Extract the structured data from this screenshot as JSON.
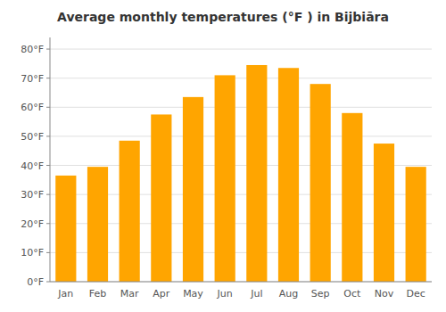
{
  "chart_data": {
    "type": "bar",
    "title": "Average monthly temperatures (°F ) in Bijbiāra",
    "categories": [
      "Jan",
      "Feb",
      "Mar",
      "Apr",
      "May",
      "Jun",
      "Jul",
      "Aug",
      "Sep",
      "Oct",
      "Nov",
      "Dec"
    ],
    "values": [
      36.5,
      39.5,
      48.5,
      57.5,
      63.5,
      71.0,
      74.5,
      73.5,
      68.0,
      58.0,
      47.5,
      39.5
    ],
    "color": "#FFA500",
    "ylim": [
      0,
      84
    ],
    "yticks": [
      {
        "value": 0,
        "label": "0°F"
      },
      {
        "value": 10,
        "label": "10°F"
      },
      {
        "value": 20,
        "label": "20°F"
      },
      {
        "value": 30,
        "label": "30°F"
      },
      {
        "value": 40,
        "label": "40°F"
      },
      {
        "value": 50,
        "label": "50°F"
      },
      {
        "value": 60,
        "label": "60°F"
      },
      {
        "value": 70,
        "label": "70°F"
      },
      {
        "value": 80,
        "label": "80°F"
      }
    ],
    "grid": true
  }
}
